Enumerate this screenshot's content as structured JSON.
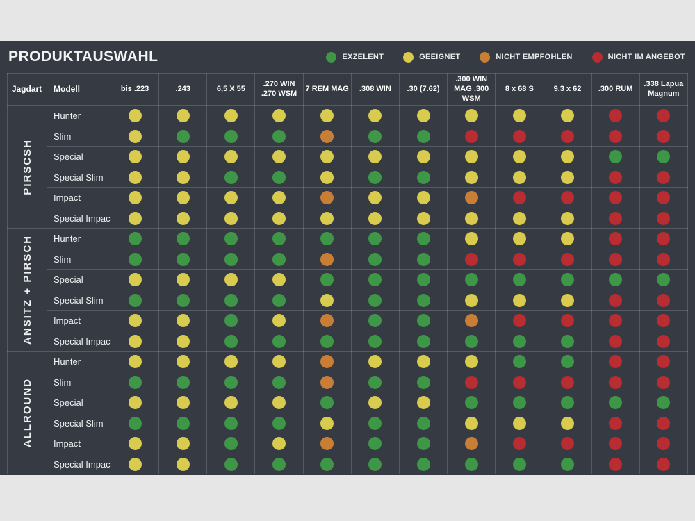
{
  "page": {
    "background": "#e6e6e6",
    "panel_background": "#363a42"
  },
  "rating_colors": {
    "g": "#3e9747",
    "y": "#d8cb4d",
    "o": "#c97e36",
    "r": "#b82c32"
  },
  "rating_names": {
    "g": "exzelent",
    "y": "geeignet",
    "o": "nicht-empfohlen",
    "r": "nicht-im-angebot"
  },
  "header": {
    "title": "PRODUKTAUSWAHL",
    "legend": [
      {
        "label": "EXZELENT",
        "color": "#3e9747"
      },
      {
        "label": "GEEIGNET",
        "color": "#d8cb4d"
      },
      {
        "label": "NICHT EMPFOHLEN",
        "color": "#c97e36"
      },
      {
        "label": "NICHT IM ANGEBOT",
        "color": "#b82c32"
      }
    ]
  },
  "table": {
    "jagdart_header": "Jagdart",
    "modell_header": "Modell",
    "calibers": [
      "bis .223",
      ".243",
      "6,5 X 55",
      ".270 WIN .270 WSM",
      "7 REM MAG",
      ".308 WIN",
      ".30 (7.62)",
      ".300 WIN MAG .300 WSM",
      "8 x 68 S",
      "9.3 x 62",
      ".300 RUM",
      ".338 Lapua Magnum"
    ],
    "groups": [
      {
        "name": "PIRSCSH",
        "rows": [
          {
            "model": "Hunter",
            "ratings": [
              "y",
              "y",
              "y",
              "y",
              "y",
              "y",
              "y",
              "y",
              "y",
              "y",
              "r",
              "r"
            ]
          },
          {
            "model": "Slim",
            "ratings": [
              "y",
              "g",
              "g",
              "g",
              "o",
              "g",
              "g",
              "r",
              "r",
              "r",
              "r",
              "r"
            ]
          },
          {
            "model": "Special",
            "ratings": [
              "y",
              "y",
              "y",
              "y",
              "y",
              "y",
              "y",
              "y",
              "y",
              "y",
              "g",
              "g"
            ]
          },
          {
            "model": "Special Slim",
            "ratings": [
              "y",
              "y",
              "g",
              "g",
              "y",
              "g",
              "g",
              "y",
              "y",
              "y",
              "r",
              "r"
            ]
          },
          {
            "model": "Impact",
            "ratings": [
              "y",
              "y",
              "y",
              "y",
              "o",
              "y",
              "y",
              "o",
              "r",
              "r",
              "r",
              "r"
            ]
          },
          {
            "model": "Special Impact",
            "ratings": [
              "y",
              "y",
              "y",
              "y",
              "y",
              "y",
              "y",
              "y",
              "y",
              "y",
              "r",
              "r"
            ]
          }
        ]
      },
      {
        "name": "ANSITZ + PIRSCH",
        "rows": [
          {
            "model": "Hunter",
            "ratings": [
              "g",
              "g",
              "g",
              "g",
              "g",
              "g",
              "g",
              "y",
              "y",
              "y",
              "r",
              "r"
            ]
          },
          {
            "model": "Slim",
            "ratings": [
              "g",
              "g",
              "g",
              "g",
              "o",
              "g",
              "g",
              "r",
              "r",
              "r",
              "r",
              "r"
            ]
          },
          {
            "model": "Special",
            "ratings": [
              "y",
              "y",
              "y",
              "y",
              "g",
              "g",
              "g",
              "g",
              "g",
              "g",
              "g",
              "g"
            ]
          },
          {
            "model": "Special Slim",
            "ratings": [
              "g",
              "g",
              "g",
              "g",
              "y",
              "g",
              "g",
              "y",
              "y",
              "y",
              "r",
              "r"
            ]
          },
          {
            "model": "Impact",
            "ratings": [
              "y",
              "y",
              "g",
              "y",
              "o",
              "g",
              "g",
              "o",
              "r",
              "r",
              "r",
              "r"
            ]
          },
          {
            "model": "Special Impact",
            "ratings": [
              "y",
              "y",
              "g",
              "g",
              "g",
              "g",
              "g",
              "g",
              "g",
              "g",
              "r",
              "r"
            ]
          }
        ]
      },
      {
        "name": "ALLROUND",
        "rows": [
          {
            "model": "Hunter",
            "ratings": [
              "y",
              "y",
              "y",
              "y",
              "o",
              "y",
              "y",
              "y",
              "g",
              "g",
              "r",
              "r"
            ]
          },
          {
            "model": "Slim",
            "ratings": [
              "g",
              "g",
              "g",
              "g",
              "o",
              "g",
              "g",
              "r",
              "r",
              "r",
              "r",
              "r"
            ]
          },
          {
            "model": "Special",
            "ratings": [
              "y",
              "y",
              "y",
              "y",
              "g",
              "y",
              "y",
              "g",
              "g",
              "g",
              "g",
              "g"
            ]
          },
          {
            "model": "Special Slim",
            "ratings": [
              "g",
              "g",
              "g",
              "g",
              "y",
              "g",
              "g",
              "y",
              "y",
              "y",
              "r",
              "r"
            ]
          },
          {
            "model": "Impact",
            "ratings": [
              "y",
              "y",
              "g",
              "y",
              "o",
              "g",
              "g",
              "o",
              "r",
              "r",
              "r",
              "r"
            ]
          },
          {
            "model": "Special Impact",
            "ratings": [
              "y",
              "y",
              "g",
              "g",
              "g",
              "g",
              "g",
              "g",
              "g",
              "g",
              "r",
              "r"
            ]
          }
        ]
      }
    ]
  },
  "chart_data": {
    "type": "table",
    "title": "PRODUKTAUSWAHL",
    "legend": [
      "EXZELENT",
      "GEEIGNET",
      "NICHT EMPFOHLEN",
      "NICHT IM ANGEBOT"
    ],
    "legend_position": "top-right",
    "columns": [
      "bis .223",
      ".243",
      "6,5 X 55",
      ".270 WIN .270 WSM",
      "7 REM MAG",
      ".308 WIN",
      ".30 (7.62)",
      ".300 WIN MAG .300 WSM",
      "8 x 68 S",
      "9.3 x 62",
      ".300 RUM",
      ".338 Lapua Magnum"
    ],
    "row_groups": [
      "PIRSCSH",
      "ANSITZ + PIRSCH",
      "ALLROUND"
    ],
    "rows": [
      {
        "group": "PIRSCSH",
        "model": "Hunter",
        "values": [
          "geeignet",
          "geeignet",
          "geeignet",
          "geeignet",
          "geeignet",
          "geeignet",
          "geeignet",
          "geeignet",
          "geeignet",
          "geeignet",
          "nicht im angebot",
          "nicht im angebot"
        ]
      },
      {
        "group": "PIRSCSH",
        "model": "Slim",
        "values": [
          "geeignet",
          "exzelent",
          "exzelent",
          "exzelent",
          "nicht empfohlen",
          "exzelent",
          "exzelent",
          "nicht im angebot",
          "nicht im angebot",
          "nicht im angebot",
          "nicht im angebot",
          "nicht im angebot"
        ]
      },
      {
        "group": "PIRSCSH",
        "model": "Special",
        "values": [
          "geeignet",
          "geeignet",
          "geeignet",
          "geeignet",
          "geeignet",
          "geeignet",
          "geeignet",
          "geeignet",
          "geeignet",
          "geeignet",
          "exzelent",
          "exzelent"
        ]
      },
      {
        "group": "PIRSCSH",
        "model": "Special Slim",
        "values": [
          "geeignet",
          "geeignet",
          "exzelent",
          "exzelent",
          "geeignet",
          "exzelent",
          "exzelent",
          "geeignet",
          "geeignet",
          "geeignet",
          "nicht im angebot",
          "nicht im angebot"
        ]
      },
      {
        "group": "PIRSCSH",
        "model": "Impact",
        "values": [
          "geeignet",
          "geeignet",
          "geeignet",
          "geeignet",
          "nicht empfohlen",
          "geeignet",
          "geeignet",
          "nicht empfohlen",
          "nicht im angebot",
          "nicht im angebot",
          "nicht im angebot",
          "nicht im angebot"
        ]
      },
      {
        "group": "PIRSCSH",
        "model": "Special Impact",
        "values": [
          "geeignet",
          "geeignet",
          "geeignet",
          "geeignet",
          "geeignet",
          "geeignet",
          "geeignet",
          "geeignet",
          "geeignet",
          "geeignet",
          "nicht im angebot",
          "nicht im angebot"
        ]
      },
      {
        "group": "ANSITZ + PIRSCH",
        "model": "Hunter",
        "values": [
          "exzelent",
          "exzelent",
          "exzelent",
          "exzelent",
          "exzelent",
          "exzelent",
          "exzelent",
          "geeignet",
          "geeignet",
          "geeignet",
          "nicht im angebot",
          "nicht im angebot"
        ]
      },
      {
        "group": "ANSITZ + PIRSCH",
        "model": "Slim",
        "values": [
          "exzelent",
          "exzelent",
          "exzelent",
          "exzelent",
          "nicht empfohlen",
          "exzelent",
          "exzelent",
          "nicht im angebot",
          "nicht im angebot",
          "nicht im angebot",
          "nicht im angebot",
          "nicht im angebot"
        ]
      },
      {
        "group": "ANSITZ + PIRSCH",
        "model": "Special",
        "values": [
          "geeignet",
          "geeignet",
          "geeignet",
          "geeignet",
          "exzelent",
          "exzelent",
          "exzelent",
          "exzelent",
          "exzelent",
          "exzelent",
          "exzelent",
          "exzelent"
        ]
      },
      {
        "group": "ANSITZ + PIRSCH",
        "model": "Special Slim",
        "values": [
          "exzelent",
          "exzelent",
          "exzelent",
          "exzelent",
          "geeignet",
          "exzelent",
          "exzelent",
          "geeignet",
          "geeignet",
          "geeignet",
          "nicht im angebot",
          "nicht im angebot"
        ]
      },
      {
        "group": "ANSITZ + PIRSCH",
        "model": "Impact",
        "values": [
          "geeignet",
          "geeignet",
          "exzelent",
          "geeignet",
          "nicht empfohlen",
          "exzelent",
          "exzelent",
          "nicht empfohlen",
          "nicht im angebot",
          "nicht im angebot",
          "nicht im angebot",
          "nicht im angebot"
        ]
      },
      {
        "group": "ANSITZ + PIRSCH",
        "model": "Special Impact",
        "values": [
          "geeignet",
          "geeignet",
          "exzelent",
          "exzelent",
          "exzelent",
          "exzelent",
          "exzelent",
          "exzelent",
          "exzelent",
          "exzelent",
          "nicht im angebot",
          "nicht im angebot"
        ]
      },
      {
        "group": "ALLROUND",
        "model": "Hunter",
        "values": [
          "geeignet",
          "geeignet",
          "geeignet",
          "geeignet",
          "nicht empfohlen",
          "geeignet",
          "geeignet",
          "geeignet",
          "exzelent",
          "exzelent",
          "nicht im angebot",
          "nicht im angebot"
        ]
      },
      {
        "group": "ALLROUND",
        "model": "Slim",
        "values": [
          "exzelent",
          "exzelent",
          "exzelent",
          "exzelent",
          "nicht empfohlen",
          "exzelent",
          "exzelent",
          "nicht im angebot",
          "nicht im angebot",
          "nicht im angebot",
          "nicht im angebot",
          "nicht im angebot"
        ]
      },
      {
        "group": "ALLROUND",
        "model": "Special",
        "values": [
          "geeignet",
          "geeignet",
          "geeignet",
          "geeignet",
          "exzelent",
          "geeignet",
          "geeignet",
          "exzelent",
          "exzelent",
          "exzelent",
          "exzelent",
          "exzelent"
        ]
      },
      {
        "group": "ALLROUND",
        "model": "Special Slim",
        "values": [
          "exzelent",
          "exzelent",
          "exzelent",
          "exzelent",
          "geeignet",
          "exzelent",
          "exzelent",
          "geeignet",
          "geeignet",
          "geeignet",
          "nicht im angebot",
          "nicht im angebot"
        ]
      },
      {
        "group": "ALLROUND",
        "model": "Impact",
        "values": [
          "geeignet",
          "geeignet",
          "exzelent",
          "geeignet",
          "nicht empfohlen",
          "exzelent",
          "exzelent",
          "nicht empfohlen",
          "nicht im angebot",
          "nicht im angebot",
          "nicht im angebot",
          "nicht im angebot"
        ]
      },
      {
        "group": "ALLROUND",
        "model": "Special Impact",
        "values": [
          "geeignet",
          "geeignet",
          "exzelent",
          "exzelent",
          "exzelent",
          "exzelent",
          "exzelent",
          "exzelent",
          "exzelent",
          "exzelent",
          "nicht im angebot",
          "nicht im angebot"
        ]
      }
    ]
  }
}
